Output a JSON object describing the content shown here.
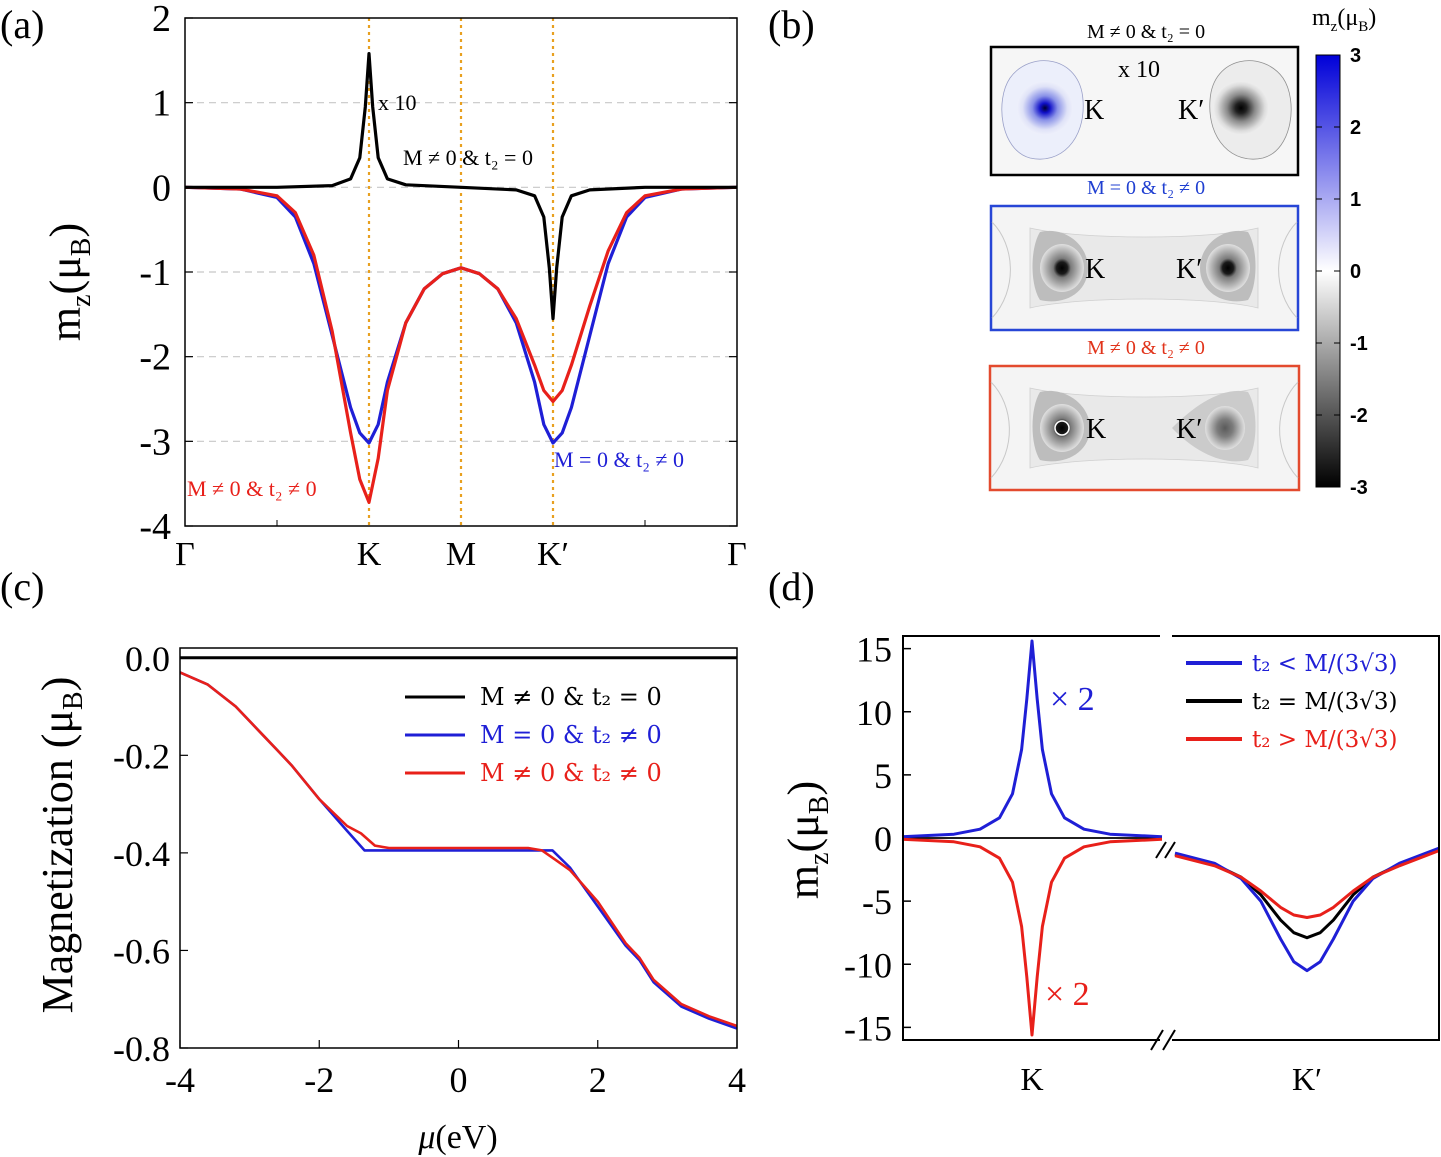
{
  "panels": {
    "a": {
      "label": "(a)",
      "ylabel_main": "m",
      "ylabel_sub": "z",
      "ylabel_paren": "(μ",
      "ylabel_sub2": "B",
      "ylabel_close": ")",
      "annotations": {
        "x10": "x 10",
        "black": "M ≠ 0 & t₂ = 0",
        "red": "M ≠ 0 & t₂ ≠ 0",
        "blue": "M = 0 & t₂ ≠ 0"
      }
    },
    "b": {
      "label": "(b)",
      "colorbar_title": "m",
      "colorbar_title_sub": "z",
      "colorbar_title_paren": "(μ",
      "colorbar_title_sub2": "B",
      "colorbar_title_close": ")",
      "colorbar_ticks": [
        "3",
        "2",
        "1",
        "0",
        "-1",
        "-2",
        "-3"
      ],
      "maps": [
        {
          "title": "M ≠ 0 & t₂ = 0",
          "title_color": "#000000",
          "border": "#000000",
          "note": "x 10",
          "K": "K",
          "Kp": "K′"
        },
        {
          "title": "M = 0 & t₂ ≠ 0",
          "title_color": "#1f3fd1",
          "border": "#2746d6",
          "note": "",
          "K": "K",
          "Kp": "K′"
        },
        {
          "title": "M ≠ 0 & t₂ ≠ 0",
          "title_color": "#e1331a",
          "border": "#e34a2e",
          "note": "",
          "K": "K",
          "Kp": "K′"
        }
      ]
    },
    "c": {
      "label": "(c)",
      "ylabel": "Magnetization (μ",
      "ylabel_sub": "B",
      "ylabel_close": ")",
      "xlabel_mu": "μ",
      "xlabel_rest": "(eV)",
      "legend": [
        "M ≠ 0 & t₂ = 0",
        "M = 0 & t₂ ≠ 0",
        "M ≠ 0 & t₂ ≠ 0"
      ]
    },
    "d": {
      "label": "(d)",
      "ylabel_main": "m",
      "ylabel_sub": "z",
      "ylabel_paren": "(μ",
      "ylabel_sub2": "B",
      "ylabel_close": ")",
      "x2_blue": "× 2",
      "x2_red": "× 2",
      "legend": [
        "t₂ < M/(3√3)",
        "t₂ = M/(3√3)",
        "t₂ > M/(3√3)"
      ]
    }
  },
  "colors": {
    "black": "#000000",
    "blue": "#1f1fd6",
    "red": "#e8201a",
    "orange": "#e8a020",
    "grid": "#c8c8c8"
  },
  "chart_data": [
    {
      "panel": "a",
      "type": "line",
      "title": "",
      "xlabel": "",
      "ylabel": "m_z(μ_B)",
      "xticks": [
        "Γ",
        "K",
        "M",
        "K′",
        "Γ"
      ],
      "xtick_positions": [
        0,
        1,
        1.5,
        2,
        3
      ],
      "ylim": [
        -4,
        2
      ],
      "yticks": [
        2,
        1,
        0,
        -1,
        -2,
        -3,
        -4
      ],
      "grid": "horizontal-dashed",
      "vlines": [
        1,
        1.5,
        2
      ],
      "series": [
        {
          "name": "M ≠ 0 & t₂ = 0",
          "color": "black",
          "x": [
            0,
            0.5,
            0.8,
            0.9,
            0.95,
            0.98,
            1.0,
            1.02,
            1.05,
            1.1,
            1.2,
            1.5,
            1.8,
            1.9,
            1.95,
            1.98,
            2.0,
            2.02,
            2.05,
            2.1,
            2.2,
            2.5,
            3.0
          ],
          "y": [
            0,
            0,
            0.02,
            0.1,
            0.35,
            0.95,
            1.58,
            0.95,
            0.35,
            0.1,
            0.03,
            0,
            -0.03,
            -0.1,
            -0.35,
            -0.95,
            -1.55,
            -0.95,
            -0.35,
            -0.1,
            -0.03,
            0,
            0
          ]
        },
        {
          "name": "M = 0 & t₂ ≠ 0",
          "color": "blue",
          "x": [
            0,
            0.3,
            0.5,
            0.6,
            0.7,
            0.8,
            0.9,
            0.95,
            1.0,
            1.05,
            1.1,
            1.2,
            1.3,
            1.4,
            1.5,
            1.6,
            1.7,
            1.8,
            1.9,
            1.95,
            2.0,
            2.05,
            2.1,
            2.2,
            2.3,
            2.4,
            2.5,
            2.7,
            3.0
          ],
          "y": [
            0,
            -0.02,
            -0.12,
            -0.35,
            -0.9,
            -1.75,
            -2.6,
            -2.9,
            -3.02,
            -2.8,
            -2.3,
            -1.6,
            -1.2,
            -1.02,
            -0.95,
            -1.02,
            -1.2,
            -1.6,
            -2.3,
            -2.8,
            -3.02,
            -2.9,
            -2.6,
            -1.75,
            -0.9,
            -0.35,
            -0.12,
            -0.02,
            0
          ]
        },
        {
          "name": "M ≠ 0 & t₂ ≠ 0",
          "color": "red",
          "x": [
            0,
            0.3,
            0.5,
            0.6,
            0.7,
            0.8,
            0.9,
            0.95,
            1.0,
            1.05,
            1.1,
            1.2,
            1.3,
            1.4,
            1.5,
            1.6,
            1.7,
            1.8,
            1.9,
            1.95,
            2.0,
            2.05,
            2.1,
            2.2,
            2.3,
            2.4,
            2.5,
            2.7,
            3.0
          ],
          "y": [
            0,
            -0.02,
            -0.1,
            -0.3,
            -0.8,
            -1.7,
            -2.9,
            -3.45,
            -3.72,
            -3.2,
            -2.4,
            -1.6,
            -1.2,
            -1.02,
            -0.95,
            -1.02,
            -1.2,
            -1.55,
            -2.1,
            -2.4,
            -2.53,
            -2.4,
            -2.1,
            -1.4,
            -0.75,
            -0.3,
            -0.1,
            -0.02,
            0
          ]
        }
      ]
    },
    {
      "panel": "c",
      "type": "line",
      "title": "",
      "xlabel": "μ(eV)",
      "ylabel": "Magnetization (μ_B)",
      "xlim": [
        -4,
        4
      ],
      "ylim": [
        -0.8,
        0.02
      ],
      "xticks": [
        -4,
        -2,
        0,
        2,
        4
      ],
      "yticks": [
        0.0,
        -0.2,
        -0.4,
        -0.6,
        -0.8
      ],
      "ytick_labels": [
        "0.0",
        "-0.2",
        "-0.4",
        "-0.6",
        "-0.8"
      ],
      "legend_position": "top-right",
      "series": [
        {
          "name": "M ≠ 0 & t₂ = 0",
          "color": "black",
          "x": [
            -4,
            4
          ],
          "y": [
            0,
            0
          ]
        },
        {
          "name": "M = 0 & t₂ ≠ 0",
          "color": "blue",
          "x": [
            -4,
            -3.6,
            -3.2,
            -2.8,
            -2.6,
            -2.4,
            -2.0,
            -1.6,
            -1.35,
            -1.2,
            -1.0,
            0,
            1.0,
            1.2,
            1.35,
            1.6,
            2.0,
            2.4,
            2.6,
            2.8,
            3.2,
            3.6,
            4.0
          ],
          "y": [
            -0.03,
            -0.055,
            -0.1,
            -0.16,
            -0.19,
            -0.22,
            -0.29,
            -0.355,
            -0.395,
            -0.395,
            -0.395,
            -0.395,
            -0.395,
            -0.395,
            -0.395,
            -0.43,
            -0.51,
            -0.59,
            -0.62,
            -0.665,
            -0.715,
            -0.74,
            -0.76
          ]
        },
        {
          "name": "M ≠ 0 & t₂ ≠ 0",
          "color": "red",
          "x": [
            -4,
            -3.6,
            -3.2,
            -2.8,
            -2.6,
            -2.4,
            -2.0,
            -1.6,
            -1.4,
            -1.2,
            -1.0,
            0,
            1.0,
            1.2,
            1.4,
            1.6,
            2.0,
            2.4,
            2.6,
            2.8,
            3.2,
            3.6,
            4.0
          ],
          "y": [
            -0.03,
            -0.055,
            -0.1,
            -0.16,
            -0.19,
            -0.22,
            -0.29,
            -0.345,
            -0.36,
            -0.385,
            -0.39,
            -0.39,
            -0.39,
            -0.395,
            -0.415,
            -0.435,
            -0.5,
            -0.585,
            -0.615,
            -0.66,
            -0.71,
            -0.735,
            -0.755
          ]
        }
      ]
    },
    {
      "panel": "d",
      "type": "line",
      "title": "",
      "xlabel": "",
      "ylabel": "m_z(μ_B)",
      "xticks": [
        "K",
        "K′"
      ],
      "ylim": [
        -16,
        16
      ],
      "yticks": [
        15,
        10,
        5,
        0,
        -5,
        -10,
        -15
      ],
      "broken_axis": true,
      "legend_position": "top-right",
      "series": [
        {
          "name": "t₂ < M/(3√3)",
          "color": "blue",
          "left": {
            "x": [
              -1,
              -0.6,
              -0.4,
              -0.25,
              -0.15,
              -0.08,
              -0.04,
              0,
              0.04,
              0.08,
              0.15,
              0.25,
              0.4,
              0.6,
              1
            ],
            "y": [
              0.1,
              0.3,
              0.7,
              1.6,
              3.5,
              7,
              11,
              15.6,
              11,
              7,
              3.5,
              1.6,
              0.7,
              0.3,
              0.1
            ]
          },
          "right": {
            "x": [
              -1,
              -0.7,
              -0.5,
              -0.35,
              -0.2,
              -0.1,
              0,
              0.1,
              0.2,
              0.35,
              0.5,
              0.7,
              1
            ],
            "y": [
              -1.2,
              -2,
              -3.2,
              -5,
              -8,
              -9.8,
              -10.5,
              -9.8,
              -8,
              -5,
              -3.2,
              -2,
              -0.8
            ]
          }
        },
        {
          "name": "t₂ = M/(3√3)",
          "color": "black",
          "left": {
            "x": [
              -1,
              1
            ],
            "y": [
              0,
              0
            ]
          },
          "right": {
            "x": [
              -1,
              -0.7,
              -0.5,
              -0.35,
              -0.2,
              -0.1,
              0,
              0.1,
              0.2,
              0.35,
              0.5,
              0.7,
              1
            ],
            "y": [
              -1.3,
              -2.1,
              -3.1,
              -4.5,
              -6.5,
              -7.5,
              -7.9,
              -7.5,
              -6.5,
              -4.5,
              -3.1,
              -2.1,
              -0.9
            ]
          }
        },
        {
          "name": "t₂ > M/(3√3)",
          "color": "red",
          "left": {
            "x": [
              -1,
              -0.6,
              -0.4,
              -0.25,
              -0.15,
              -0.08,
              -0.04,
              0,
              0.04,
              0.08,
              0.15,
              0.25,
              0.4,
              0.6,
              1
            ],
            "y": [
              -0.1,
              -0.3,
              -0.7,
              -1.6,
              -3.5,
              -7,
              -11,
              -15.6,
              -11,
              -7,
              -3.5,
              -1.6,
              -0.7,
              -0.3,
              -0.1
            ]
          },
          "right": {
            "x": [
              -1,
              -0.7,
              -0.5,
              -0.35,
              -0.2,
              -0.1,
              0,
              0.1,
              0.2,
              0.35,
              0.5,
              0.7,
              1
            ],
            "y": [
              -1.4,
              -2.2,
              -3.1,
              -4.2,
              -5.5,
              -6.1,
              -6.3,
              -6.1,
              -5.5,
              -4.2,
              -3.1,
              -2.2,
              -1.0
            ]
          }
        }
      ]
    }
  ]
}
